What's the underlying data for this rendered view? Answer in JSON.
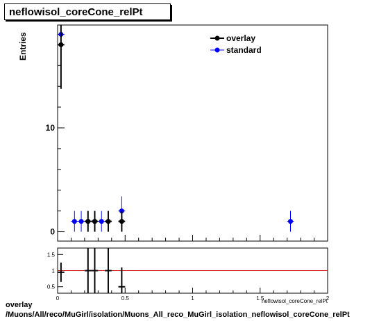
{
  "title": "neflowisol_coreCone_relPt",
  "footer": {
    "line1": "overlay",
    "line2": "/Muons/All/reco/MuGirl/isolation/Muons_All_reco_MuGirl_isolation_neflowisol_coreCone_relPt"
  },
  "colors": {
    "overlay": "#000000",
    "standard": "#0000ff",
    "ratio_line": "#cc0000"
  },
  "chart_data": [
    {
      "type": "scatter",
      "ylabel": "Entries",
      "xlabel": "neflowisol_coreCone_relPt",
      "xlim": [
        0,
        2
      ],
      "ylim": [
        -0.9,
        19.9
      ],
      "y_ticks": [
        0,
        10
      ],
      "legend_position": "top-right",
      "series": [
        {
          "name": "overlay",
          "color": "#000000",
          "points": [
            {
              "x": 0.025,
              "y": 18,
              "yerr": 4.24
            },
            {
              "x": 0.225,
              "y": 1,
              "yerr": 1
            },
            {
              "x": 0.275,
              "y": 1,
              "yerr": 1
            },
            {
              "x": 0.375,
              "y": 1,
              "yerr": 1
            },
            {
              "x": 0.475,
              "y": 1,
              "yerr": 1
            }
          ]
        },
        {
          "name": "standard",
          "color": "#0000ff",
          "points": [
            {
              "x": 0.025,
              "y": 19,
              "yerr": 4.36
            },
            {
              "x": 0.125,
              "y": 1,
              "yerr": 1
            },
            {
              "x": 0.175,
              "y": 1,
              "yerr": 1
            },
            {
              "x": 0.225,
              "y": 1,
              "yerr": 1
            },
            {
              "x": 0.275,
              "y": 1,
              "yerr": 1
            },
            {
              "x": 0.325,
              "y": 1,
              "yerr": 1
            },
            {
              "x": 0.375,
              "y": 1,
              "yerr": 1
            },
            {
              "x": 0.475,
              "y": 2,
              "yerr": 1.41
            },
            {
              "x": 1.725,
              "y": 1,
              "yerr": 1
            }
          ]
        }
      ]
    },
    {
      "type": "scatter",
      "xlim": [
        0,
        2
      ],
      "ylim": [
        0.3,
        1.7
      ],
      "x_ticks": [
        "0",
        "0.5",
        "1",
        "1.5",
        "2"
      ],
      "y_ticks": [
        "0.5",
        "1",
        "1.5"
      ],
      "reference_line": 1,
      "series": [
        {
          "name": "ratio",
          "color": "#000000",
          "points": [
            {
              "x": 0.025,
              "y": 0.95,
              "yerr": 0.3
            },
            {
              "x": 0.225,
              "y": 1.0,
              "yerr": 1.4
            },
            {
              "x": 0.275,
              "y": 1.0,
              "yerr": 1.4
            },
            {
              "x": 0.375,
              "y": 1.0,
              "yerr": 1.4
            },
            {
              "x": 0.475,
              "y": 0.5,
              "yerr": 0.6
            }
          ]
        }
      ]
    }
  ]
}
